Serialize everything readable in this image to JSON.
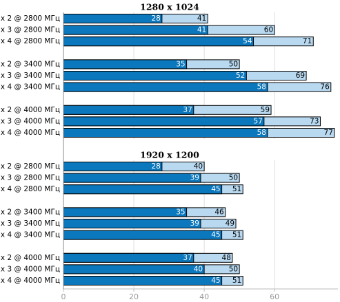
{
  "chart_data": [
    {
      "type": "bar",
      "title": "1280 x 1024",
      "categories": [
        "x 2 @ 2800 МГц",
        "x 3 @ 2800 МГц",
        "x 4 @ 2800 МГц",
        null,
        "x 2 @ 3400 МГц",
        "x 3 @ 3400 МГц",
        "x 4 @ 3400 МГц",
        null,
        "x 2 @ 4000 МГц",
        "x 3 @ 4000 МГц",
        "x 4 @ 4000 МГц"
      ],
      "series": [
        {
          "color": "#b9d9f1",
          "values": [
            41,
            60,
            71,
            null,
            50,
            69,
            76,
            null,
            59,
            73,
            77
          ]
        },
        {
          "color": "#0b77bd",
          "values": [
            28,
            41,
            54,
            null,
            35,
            52,
            58,
            null,
            37,
            57,
            58
          ]
        }
      ],
      "xlim": [
        0,
        78
      ],
      "xticks": [
        0,
        20,
        40,
        60
      ],
      "grid": true
    },
    {
      "type": "bar",
      "title": "1920 x 1200",
      "categories": [
        "x 2 @ 2800 МГц",
        "x 3 @ 2800 МГц",
        "x 4 @ 2800 МГц",
        null,
        "x 2 @ 3400 МГц",
        "x 3 @ 3400 МГц",
        "x 4 @ 3400 МГц",
        null,
        "x 2 @ 4000 МГц",
        "x 3 @ 4000 МГц",
        "x 4 @ 4000 МГц"
      ],
      "series": [
        {
          "color": "#b9d9f1",
          "values": [
            40,
            50,
            51,
            null,
            46,
            49,
            51,
            null,
            48,
            50,
            51
          ]
        },
        {
          "color": "#0b77bd",
          "values": [
            28,
            39,
            45,
            null,
            35,
            39,
            45,
            null,
            37,
            40,
            45
          ]
        }
      ],
      "xlim": [
        0,
        78
      ],
      "xticks": [
        0,
        20,
        40,
        60
      ],
      "grid": true
    }
  ]
}
